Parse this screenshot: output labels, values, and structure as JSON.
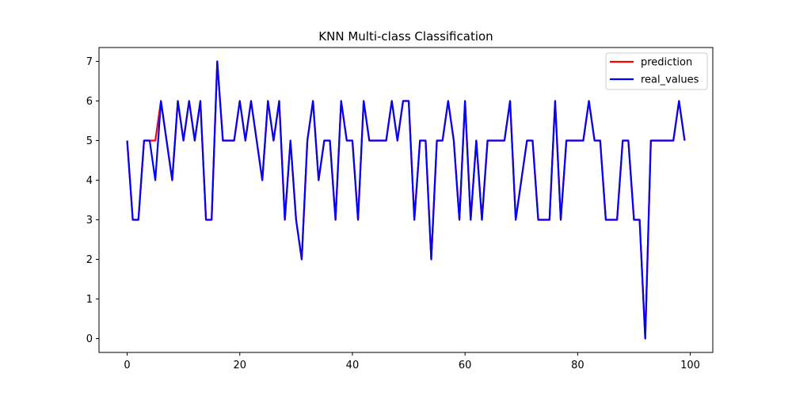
{
  "chart_data": {
    "type": "line",
    "title": "KNN Multi-class Classification",
    "xlabel": "",
    "ylabel": "",
    "xlim": [
      -5,
      104
    ],
    "ylim": [
      -0.35,
      7.35
    ],
    "xticks": [
      0,
      20,
      40,
      60,
      80,
      100
    ],
    "yticks": [
      0,
      1,
      2,
      3,
      4,
      5,
      6,
      7
    ],
    "grid": false,
    "legend_position": "top-right",
    "series": [
      {
        "name": "prediction",
        "color": "#ff0000",
        "values": [
          5,
          3,
          3,
          5,
          5,
          5,
          6,
          5,
          4,
          6,
          5,
          6,
          5,
          6,
          3,
          3,
          7,
          5,
          5,
          5,
          6,
          5,
          6,
          5,
          4,
          6,
          5,
          6,
          3,
          5,
          3,
          2,
          5,
          6,
          4,
          5,
          5,
          3,
          6,
          5,
          5,
          3,
          6,
          5,
          5,
          5,
          5,
          6,
          5,
          6,
          6,
          3,
          5,
          5,
          2,
          5,
          5,
          6,
          5,
          3,
          6,
          3,
          5,
          3,
          5,
          5,
          5,
          5,
          6,
          3,
          4,
          5,
          5,
          3,
          3,
          3,
          6,
          3,
          5,
          5,
          5,
          5,
          6,
          5,
          5,
          3,
          3,
          3,
          5,
          5,
          3,
          3,
          0,
          5,
          5,
          5,
          5,
          5,
          6,
          5
        ]
      },
      {
        "name": "real_values",
        "color": "#0000ff",
        "values": [
          5,
          3,
          3,
          5,
          5,
          4,
          6,
          5,
          4,
          6,
          5,
          6,
          5,
          6,
          3,
          3,
          7,
          5,
          5,
          5,
          6,
          5,
          6,
          5,
          4,
          6,
          5,
          6,
          3,
          5,
          3,
          2,
          5,
          6,
          4,
          5,
          5,
          3,
          6,
          5,
          5,
          3,
          6,
          5,
          5,
          5,
          5,
          6,
          5,
          6,
          6,
          3,
          5,
          5,
          2,
          5,
          5,
          6,
          5,
          3,
          6,
          3,
          5,
          3,
          5,
          5,
          5,
          5,
          6,
          3,
          4,
          5,
          5,
          3,
          3,
          3,
          6,
          3,
          5,
          5,
          5,
          5,
          6,
          5,
          5,
          3,
          3,
          3,
          5,
          5,
          3,
          3,
          0,
          5,
          5,
          5,
          5,
          5,
          6,
          5
        ]
      }
    ]
  }
}
